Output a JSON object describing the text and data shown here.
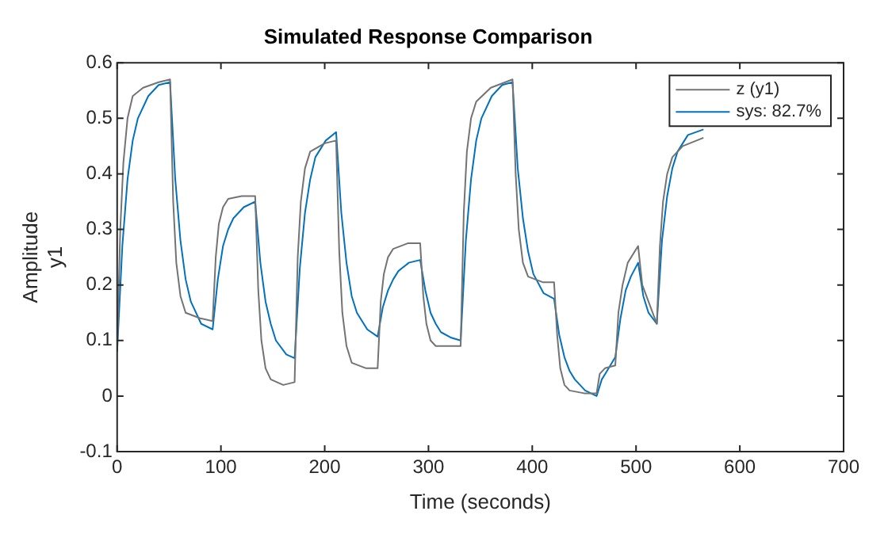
{
  "chart_data": {
    "type": "line",
    "title": "Simulated Response Comparison",
    "xlabel": "Time (seconds)",
    "ylabel": "Amplitude\ny1",
    "xlim": [
      0,
      700
    ],
    "xticks": [
      0,
      100,
      200,
      300,
      400,
      500,
      600,
      700
    ],
    "ylim": [
      -0.1,
      0.6
    ],
    "yticks": [
      -0.1,
      0,
      0.1,
      0.2,
      0.3,
      0.4,
      0.5,
      0.6
    ],
    "grid": false,
    "legend": "top right",
    "marker": "none",
    "line_style": "solid",
    "series": [
      {
        "name": "z (y1)",
        "color": "#737373",
        "x": [
          0,
          3,
          6,
          10,
          15,
          25,
          40,
          51,
          54,
          57,
          61,
          66,
          80,
          92,
          95,
          98,
          102,
          107,
          120,
          133,
          136,
          139,
          143,
          148,
          160,
          171,
          174,
          177,
          181,
          186,
          200,
          211,
          214,
          217,
          221,
          226,
          240,
          251,
          254,
          257,
          261,
          266,
          280,
          292,
          295,
          298,
          302,
          307,
          320,
          331,
          334,
          337,
          341,
          346,
          360,
          381,
          384,
          387,
          391,
          396,
          410,
          421,
          424,
          427,
          431,
          436,
          450,
          462,
          465,
          470,
          480,
          483,
          487,
          492,
          502,
          506,
          512,
          520,
          523,
          526,
          530,
          535,
          545,
          565
        ],
        "values": [
          0.08,
          0.3,
          0.42,
          0.5,
          0.54,
          0.555,
          0.565,
          0.57,
          0.35,
          0.24,
          0.18,
          0.15,
          0.14,
          0.135,
          0.25,
          0.31,
          0.34,
          0.355,
          0.36,
          0.36,
          0.19,
          0.1,
          0.05,
          0.03,
          0.02,
          0.025,
          0.25,
          0.35,
          0.41,
          0.44,
          0.455,
          0.46,
          0.26,
          0.15,
          0.09,
          0.06,
          0.05,
          0.05,
          0.17,
          0.22,
          0.25,
          0.265,
          0.275,
          0.275,
          0.18,
          0.13,
          0.1,
          0.09,
          0.09,
          0.09,
          0.33,
          0.44,
          0.5,
          0.53,
          0.555,
          0.57,
          0.4,
          0.3,
          0.24,
          0.215,
          0.205,
          0.205,
          0.11,
          0.05,
          0.02,
          0.01,
          0.005,
          0.005,
          0.04,
          0.05,
          0.055,
          0.15,
          0.2,
          0.24,
          0.27,
          0.2,
          0.17,
          0.13,
          0.27,
          0.35,
          0.4,
          0.43,
          0.45,
          0.465
        ]
      },
      {
        "name": "sys: 82.7%",
        "color": "#0072bd",
        "x": [
          0,
          5,
          10,
          15,
          20,
          30,
          40,
          51,
          56,
          61,
          66,
          71,
          81,
          92,
          97,
          102,
          107,
          112,
          122,
          133,
          138,
          143,
          148,
          153,
          163,
          171,
          176,
          181,
          186,
          191,
          201,
          211,
          216,
          221,
          226,
          231,
          241,
          251,
          256,
          261,
          266,
          271,
          281,
          292,
          297,
          302,
          307,
          312,
          322,
          331,
          336,
          341,
          346,
          351,
          361,
          371,
          381,
          386,
          391,
          396,
          401,
          411,
          421,
          426,
          431,
          436,
          441,
          451,
          462,
          467,
          472,
          480,
          485,
          490,
          495,
          502,
          507,
          512,
          520,
          525,
          530,
          535,
          540,
          550,
          565
        ],
        "values": [
          0.08,
          0.27,
          0.39,
          0.46,
          0.5,
          0.54,
          0.56,
          0.565,
          0.39,
          0.28,
          0.21,
          0.17,
          0.13,
          0.12,
          0.21,
          0.27,
          0.3,
          0.32,
          0.34,
          0.35,
          0.24,
          0.17,
          0.13,
          0.1,
          0.075,
          0.068,
          0.23,
          0.33,
          0.39,
          0.43,
          0.46,
          0.475,
          0.33,
          0.24,
          0.18,
          0.15,
          0.12,
          0.107,
          0.16,
          0.19,
          0.21,
          0.225,
          0.24,
          0.245,
          0.19,
          0.15,
          0.13,
          0.115,
          0.105,
          0.1,
          0.28,
          0.39,
          0.46,
          0.5,
          0.54,
          0.56,
          0.565,
          0.41,
          0.32,
          0.26,
          0.22,
          0.185,
          0.175,
          0.11,
          0.07,
          0.045,
          0.03,
          0.01,
          0,
          0.03,
          0.045,
          0.07,
          0.14,
          0.19,
          0.215,
          0.24,
          0.18,
          0.15,
          0.13,
          0.28,
          0.36,
          0.41,
          0.44,
          0.47,
          0.48
        ]
      }
    ]
  }
}
